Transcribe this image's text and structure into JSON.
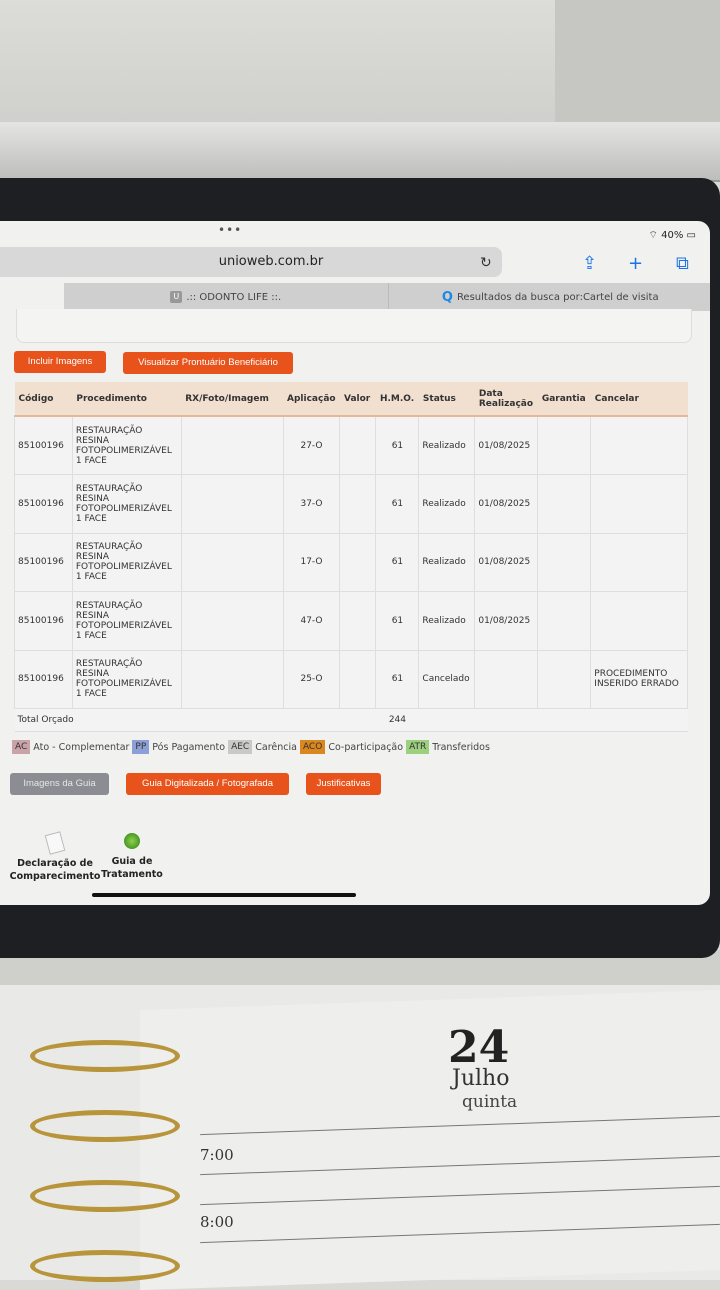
{
  "status_bar": {
    "battery": "40%"
  },
  "browser": {
    "url": "unioweb.com.br",
    "tabs": [
      {
        "label": ".:: ODONTO LIFE ::.",
        "favicon": "U"
      },
      {
        "label": "Resultados da busca por:Cartel de visita"
      }
    ]
  },
  "actions": {
    "include_images": "Incluir Imagens",
    "view_record": "Visualizar Prontuário Beneficiário"
  },
  "table": {
    "headers": [
      "Código",
      "Procedimento",
      "RX/Foto/Imagem",
      "Aplicação",
      "Valor",
      "H.M.O.",
      "Status",
      "Data Realização",
      "Garantia",
      "Cancelar"
    ],
    "rows": [
      {
        "codigo": "85100196",
        "procedimento": "RESTAURAÇÃO RESINA FOTOPOLIMERIZÁVEL 1 FACE",
        "rx": "",
        "aplicacao": "27-O",
        "valor": "",
        "hmo": "61",
        "status": "Realizado",
        "data": "01/08/2025",
        "garantia": "",
        "cancelar": ""
      },
      {
        "codigo": "85100196",
        "procedimento": "RESTAURAÇÃO RESINA FOTOPOLIMERIZÁVEL 1 FACE",
        "rx": "",
        "aplicacao": "37-O",
        "valor": "",
        "hmo": "61",
        "status": "Realizado",
        "data": "01/08/2025",
        "garantia": "",
        "cancelar": ""
      },
      {
        "codigo": "85100196",
        "procedimento": "RESTAURAÇÃO RESINA FOTOPOLIMERIZÁVEL 1 FACE",
        "rx": "",
        "aplicacao": "17-O",
        "valor": "",
        "hmo": "61",
        "status": "Realizado",
        "data": "01/08/2025",
        "garantia": "",
        "cancelar": ""
      },
      {
        "codigo": "85100196",
        "procedimento": "RESTAURAÇÃO RESINA FOTOPOLIMERIZÁVEL 1 FACE",
        "rx": "",
        "aplicacao": "47-O",
        "valor": "",
        "hmo": "61",
        "status": "Realizado",
        "data": "01/08/2025",
        "garantia": "",
        "cancelar": ""
      },
      {
        "codigo": "85100196",
        "procedimento": "RESTAURAÇÃO RESINA FOTOPOLIMERIZÁVEL 1 FACE",
        "rx": "",
        "aplicacao": "25-O",
        "valor": "",
        "hmo": "61",
        "status": "Cancelado",
        "data": "",
        "garantia": "",
        "cancelar": "PROCEDIMENTO INSERIDO ERRADO"
      }
    ],
    "total_label": "Total Orçado",
    "total_value": "244"
  },
  "legend": [
    {
      "code": "AC",
      "label": "Ato - Complementar",
      "color": "#c9a3a8"
    },
    {
      "code": "PP",
      "label": "Pós Pagamento",
      "color": "#8c9fd6"
    },
    {
      "code": "AEC",
      "label": "Carência",
      "color": "#c9c9c9"
    },
    {
      "code": "ACO",
      "label": "Co-participação",
      "color": "#d9871e"
    },
    {
      "code": "ATR",
      "label": "Transferidos",
      "color": "#9ccf7e"
    }
  ],
  "bottom_buttons": {
    "guide_images": "Imagens da Guia",
    "scanned_guide": "Guia Digitalizada / Fotografada",
    "justifications": "Justificativas"
  },
  "documents": [
    {
      "label": "Declaração de Comparecimento"
    },
    {
      "label": "Guia de Tratamento"
    }
  ],
  "planner": {
    "day": "24",
    "month": "Julho",
    "weekday": "quinta",
    "times": [
      "7:00",
      "8:00"
    ]
  }
}
